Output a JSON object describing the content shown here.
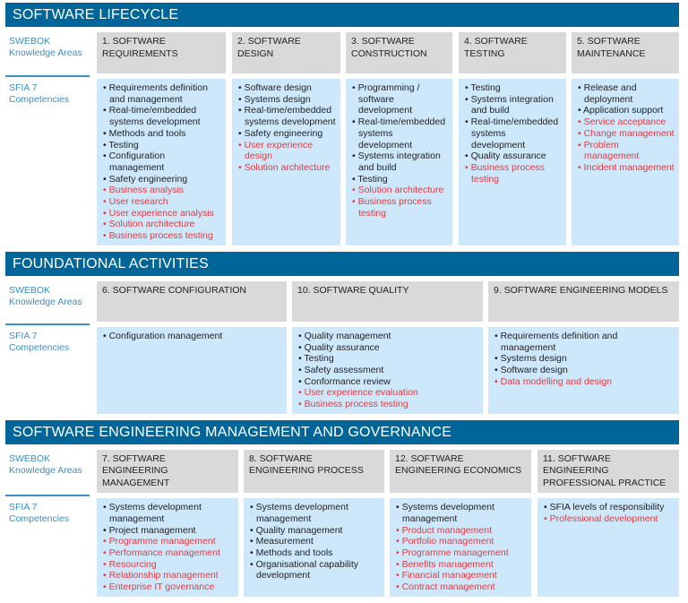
{
  "colors": {
    "header": "#006699",
    "knowledge_area": "#d9d9d9",
    "competency": "#cde8fb",
    "new_item": "#e8383d",
    "label": "#3a8fc7"
  },
  "labels": {
    "swebok": "SWEBOK Knowledge Areas",
    "sfia": "SFIA 7 Competencies"
  },
  "sections": [
    {
      "title": "SOFTWARE LIFECYCLE",
      "areas": [
        {
          "name": "1. SOFTWARE REQUIREMENTS",
          "items": [
            [
              "Requirements definition and management",
              0
            ],
            [
              "Real-time/embedded systems development",
              0
            ],
            [
              "Methods and tools",
              0
            ],
            [
              "Testing",
              0
            ],
            [
              "Configuration management",
              0
            ],
            [
              "Safety engineering",
              0
            ],
            [
              "Business analysis",
              1
            ],
            [
              "User research",
              1
            ],
            [
              "User experience analysis",
              1
            ],
            [
              "Solution architecture",
              1
            ],
            [
              "Business process testing",
              1
            ]
          ]
        },
        {
          "name": "2. SOFTWARE DESIGN",
          "items": [
            [
              "Software design",
              0
            ],
            [
              "Systems design",
              0
            ],
            [
              "Real-time/embedded systems development",
              0
            ],
            [
              "Safety engineering",
              0
            ],
            [
              "User experience design",
              1
            ],
            [
              "Solution architecture",
              1
            ]
          ]
        },
        {
          "name": "3. SOFTWARE CONSTRUCTION",
          "items": [
            [
              "Programming / software development",
              0
            ],
            [
              "Real-time/embedded systems development",
              0
            ],
            [
              "Systems integration and build",
              0
            ],
            [
              "Testing",
              0
            ],
            [
              "Solution architecture",
              1
            ],
            [
              "Business process testing",
              1
            ]
          ]
        },
        {
          "name": "4. SOFTWARE TESTING",
          "items": [
            [
              "Testing",
              0
            ],
            [
              "Systems integration and build",
              0
            ],
            [
              "Real-time/embedded systems development",
              0
            ],
            [
              "Quality assurance",
              0
            ],
            [
              "Business process testing",
              1
            ]
          ]
        },
        {
          "name": "5. SOFTWARE MAINTENANCE",
          "items": [
            [
              "Release and deployment",
              0
            ],
            [
              "Application support",
              0
            ],
            [
              "Service acceptance",
              1
            ],
            [
              "Change management",
              1
            ],
            [
              "Problem management",
              1
            ],
            [
              "Incident management",
              1
            ]
          ]
        }
      ]
    },
    {
      "title": "FOUNDATIONAL ACTIVITIES",
      "areas": [
        {
          "name": "6. SOFTWARE CONFIGURATION",
          "items": [
            [
              "Configuration management",
              0
            ]
          ]
        },
        {
          "name": "10. SOFTWARE QUALITY",
          "items": [
            [
              "Quality management",
              0
            ],
            [
              "Quality assurance",
              0
            ],
            [
              "Testing",
              0
            ],
            [
              "Safety assessment",
              0
            ],
            [
              "Conformance review",
              0
            ],
            [
              "User experience evaluation",
              1
            ],
            [
              "Business process testing",
              1
            ]
          ]
        },
        {
          "name": "9. SOFTWARE ENGINEERING MODELS",
          "items": [
            [
              "Requirements definition and management",
              0
            ],
            [
              "Systems design",
              0
            ],
            [
              "Software design",
              0
            ],
            [
              "Data modelling and design",
              1
            ]
          ]
        }
      ]
    },
    {
      "title": "SOFTWARE ENGINEERING MANAGEMENT AND GOVERNANCE",
      "areas": [
        {
          "name": "7. SOFTWARE ENGINEERING MANAGEMENT",
          "items": [
            [
              "Systems development management",
              0
            ],
            [
              "Project management",
              0
            ],
            [
              "Programme management",
              1
            ],
            [
              "Performance management",
              1
            ],
            [
              "Resourcing",
              1
            ],
            [
              "Relationship management",
              1
            ],
            [
              "Enterprise IT governance",
              1
            ]
          ]
        },
        {
          "name": "8. SOFTWARE ENGINEERING PROCESS",
          "items": [
            [
              "Systems development management",
              0
            ],
            [
              "Quality management",
              0
            ],
            [
              "Measurement",
              0
            ],
            [
              "Methods and tools",
              0
            ],
            [
              "Organisational capability development",
              0
            ]
          ]
        },
        {
          "name": "12. SOFTWARE ENGINEERING ECONOMICS",
          "items": [
            [
              "Systems development management",
              0
            ],
            [
              "Product management",
              1
            ],
            [
              "Portfolio management",
              1
            ],
            [
              "Programme management",
              1
            ],
            [
              "Benefits management",
              1
            ],
            [
              "Financial management",
              1
            ],
            [
              "Contract management",
              1
            ]
          ]
        },
        {
          "name": "11. SOFTWARE ENGINEERING PROFESSIONAL PRACTICE",
          "items": [
            [
              "SFIA levels of responsibility",
              0
            ],
            [
              "Professional development",
              1
            ]
          ]
        }
      ]
    }
  ]
}
